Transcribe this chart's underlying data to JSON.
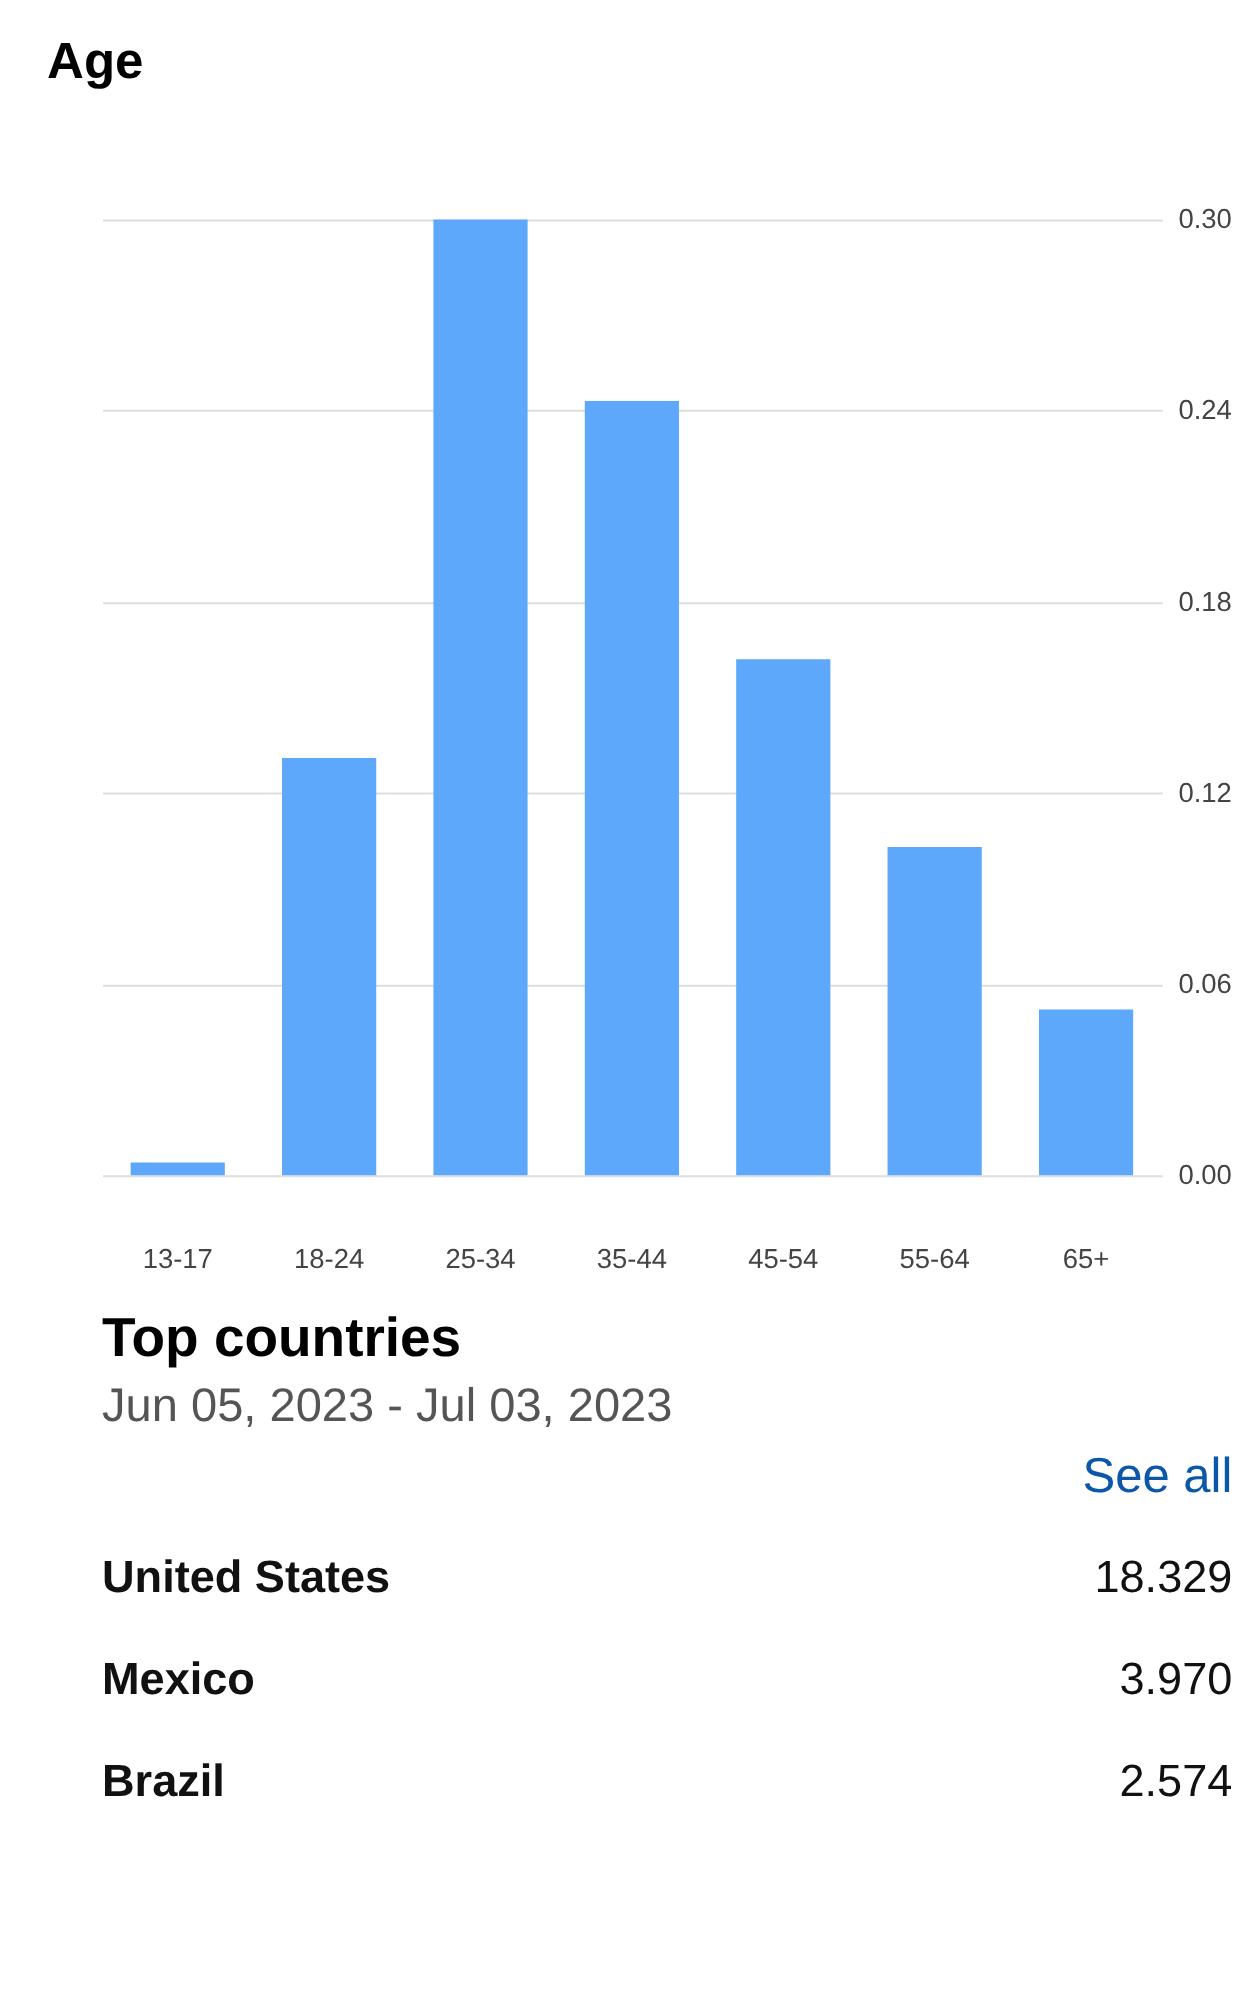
{
  "chart_data": [
    {
      "type": "bar",
      "title": "Age",
      "categories": [
        "13-17",
        "18-24",
        "25-34",
        "35-44",
        "45-54",
        "55-64",
        "65+"
      ],
      "values": [
        0.004,
        0.131,
        0.3,
        0.243,
        0.162,
        0.103,
        0.052
      ],
      "color": "#5ea8fc",
      "ylim": [
        0,
        0.3
      ],
      "yticks": [
        {
          "value": 0,
          "label": "0.00"
        },
        {
          "value": 0.06,
          "label": "0.06"
        },
        {
          "value": 0.12,
          "label": "0.12"
        },
        {
          "value": 0.18,
          "label": "0.18"
        },
        {
          "value": 0.24,
          "label": "0.24"
        },
        {
          "value": 0.3,
          "label": "0.30"
        }
      ],
      "grid": "y"
    },
    {
      "type": "other",
      "title": "Top countries",
      "subtitle": "Jun 05, 2023 - Jul 03, 2023",
      "annotations": [
        "See all",
        "United States",
        "18.329",
        "Mexico",
        "3.970",
        "Brazil",
        "2.574"
      ]
    }
  ]
}
